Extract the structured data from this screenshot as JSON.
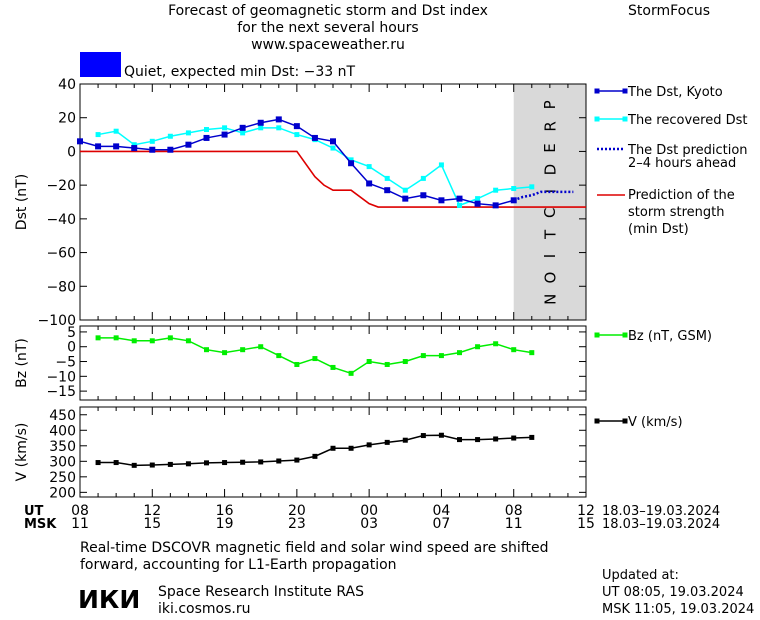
{
  "header": {
    "title_line1": "Forecast of geomagnetic storm and Dst index",
    "title_line2": "for the next several hours",
    "title_line3": "www.spaceweather.ru",
    "brand": "StormFocus"
  },
  "status": {
    "text": "Quiet, expected min Dst: −33 nT",
    "color": "#0000ff"
  },
  "colors": {
    "dst_kyoto": "#0000cc",
    "recovered": "#00ffff",
    "prediction": "#0000cc",
    "storm_strength": "#dd0000",
    "bz": "#00ee00",
    "speed": "#000000",
    "prediction_band": "#d9d9d9"
  },
  "prediction_band_label": "PREDICTION",
  "time_axis": {
    "ut_label": "UT",
    "msk_label": "MSK",
    "ut_ticks": [
      "08",
      "12",
      "16",
      "20",
      "00",
      "04",
      "08",
      "12"
    ],
    "msk_ticks": [
      "11",
      "15",
      "19",
      "23",
      "03",
      "07",
      "11",
      "15"
    ],
    "ut_range": "18.03–19.03.2024",
    "msk_range": "18.03–19.03.2024"
  },
  "chart_data": [
    {
      "type": "line",
      "ylabel": "Dst (nT)",
      "ylim": [
        -100,
        40
      ],
      "yticks": [
        40,
        20,
        0,
        -20,
        -40,
        -60,
        -80,
        -100
      ],
      "xlim": [
        0,
        28
      ],
      "x_unit": "hours since 18.03.2024 08:00 UT",
      "prediction_band": [
        24,
        28
      ],
      "series": [
        {
          "name": "The Dst, Kyoto",
          "x": [
            0,
            1,
            2,
            3,
            4,
            5,
            6,
            7,
            8,
            9,
            10,
            11,
            12,
            13,
            14,
            15,
            16,
            17,
            18,
            19,
            20,
            21,
            22,
            23,
            24
          ],
          "values": [
            6,
            3,
            3,
            2,
            1,
            1,
            4,
            8,
            10,
            14,
            17,
            19,
            15,
            8,
            6,
            -7,
            -19,
            -23,
            -28,
            -26,
            -29,
            -28,
            -31,
            -32,
            -29
          ]
        },
        {
          "name": "The recovered Dst",
          "x": [
            1,
            2,
            3,
            4,
            5,
            6,
            7,
            8,
            9,
            10,
            11,
            12,
            13,
            14,
            15,
            16,
            17,
            18,
            19,
            20,
            21,
            22,
            23,
            24,
            25
          ],
          "values": [
            10,
            12,
            4,
            6,
            9,
            11,
            13,
            14,
            11,
            14,
            14,
            10,
            7,
            2,
            -5,
            -9,
            -16,
            -23,
            -16,
            -8,
            -32,
            -28,
            -23,
            -22,
            -21
          ]
        },
        {
          "name": "The Dst prediction 2–4 hours ahead",
          "x": [
            24,
            24.5,
            25,
            25.5,
            26,
            26.5,
            27,
            27.3
          ],
          "values": [
            -29,
            -27,
            -26,
            -24,
            -24,
            -24,
            -24,
            -24
          ]
        },
        {
          "name": "Prediction of the storm strength (min Dst)",
          "x": [
            0,
            12,
            13,
            13.5,
            14,
            15,
            16,
            16.5,
            17,
            28
          ],
          "values": [
            0,
            0,
            -15,
            -20,
            -23,
            -23,
            -31,
            -33,
            -33,
            -33
          ]
        }
      ]
    },
    {
      "type": "line",
      "ylabel": "Bz (nT)",
      "ylim": [
        -18,
        7
      ],
      "yticks": [
        5,
        0,
        -5,
        -10,
        -15
      ],
      "series": [
        {
          "name": "Bz (nT, GSM)",
          "x": [
            1,
            2,
            3,
            4,
            5,
            6,
            7,
            8,
            9,
            10,
            11,
            12,
            13,
            14,
            15,
            16,
            17,
            18,
            19,
            20,
            21,
            22,
            23,
            24,
            25
          ],
          "values": [
            3,
            3,
            2,
            2,
            3,
            2,
            -1,
            -2,
            -1,
            0,
            -3,
            -6,
            -4,
            -7,
            -9,
            -5,
            -6,
            -5,
            -3,
            -3,
            -2,
            0,
            1,
            -1,
            -2
          ]
        }
      ]
    },
    {
      "type": "line",
      "ylabel": "V (km/s)",
      "ylim": [
        185,
        475
      ],
      "yticks": [
        450,
        400,
        350,
        300,
        250,
        200
      ],
      "series": [
        {
          "name": "V (km/s)",
          "x": [
            1,
            2,
            3,
            4,
            5,
            6,
            7,
            8,
            9,
            10,
            11,
            12,
            13,
            14,
            15,
            16,
            17,
            18,
            19,
            20,
            21,
            22,
            23,
            24,
            25
          ],
          "values": [
            296,
            296,
            287,
            288,
            290,
            292,
            295,
            296,
            297,
            298,
            301,
            304,
            316,
            342,
            342,
            353,
            361,
            368,
            383,
            384,
            370,
            370,
            372,
            375,
            377
          ]
        }
      ]
    }
  ],
  "legend": {
    "dst_kyoto": "The Dst, Kyoto",
    "recovered": "The recovered Dst",
    "prediction_l1": "The Dst prediction",
    "prediction_l2": "2–4 hours ahead",
    "strength_l1": "Prediction of the",
    "strength_l2": "storm strength",
    "strength_l3": "(min Dst)",
    "bz": "Bz (nT, GSM)",
    "speed": "V (km/s)"
  },
  "footer": {
    "note_line1": "Real-time DSCOVR magnetic field and solar wind speed are shifted",
    "note_line2": "forward, accounting for L1-Earth propagation",
    "logo": "ИКИ",
    "institute": "Space Research Institute RAS",
    "website": "iki.cosmos.ru",
    "updated_label": "Updated at:",
    "updated_ut": "UT   08:05, 19.03.2024",
    "updated_msk": "MSK 11:05, 19.03.2024"
  }
}
